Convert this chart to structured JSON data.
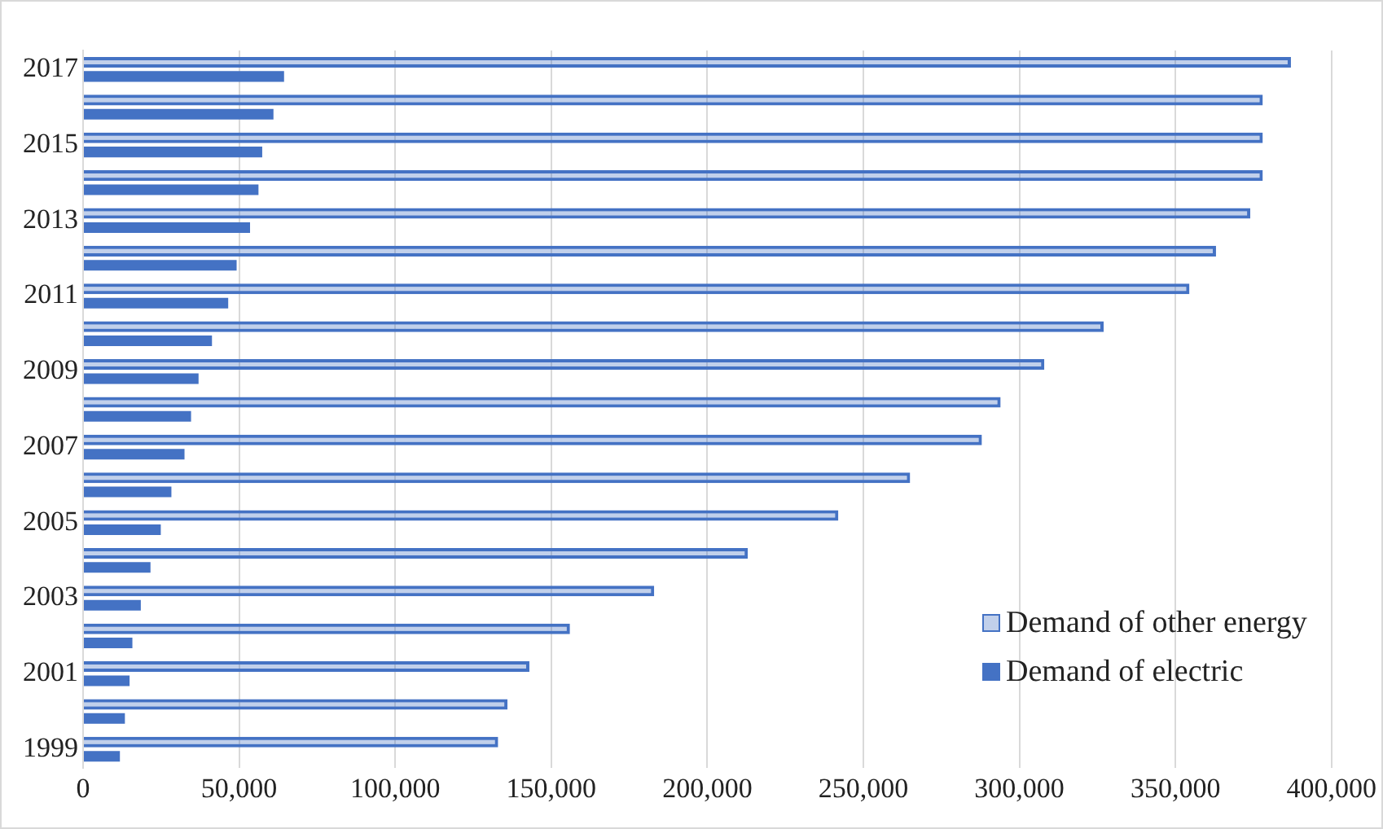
{
  "chart_data": {
    "type": "bar",
    "orientation": "horizontal",
    "categories": [
      "2017",
      null,
      "2015",
      null,
      "2013",
      null,
      "2011",
      null,
      "2009",
      null,
      "2007",
      null,
      "2005",
      null,
      "2003",
      null,
      "2001",
      null,
      "1999"
    ],
    "series": [
      {
        "name": "Demand of other energy",
        "color": "#4472c4",
        "values": [
          387000,
          378000,
          378000,
          378000,
          374000,
          363000,
          354500,
          327000,
          308000,
          294000,
          288000,
          265000,
          242000,
          213000,
          183000,
          156000,
          143000,
          136000,
          133000
        ]
      },
      {
        "name": "Demand of electric",
        "color": "#4472c4",
        "values": [
          64400,
          61000,
          57400,
          56200,
          53500,
          49200,
          46500,
          41300,
          37000,
          34600,
          32500,
          28300,
          24900,
          21600,
          18500,
          15800,
          14900,
          13400,
          11800
        ]
      }
    ],
    "xlim": [
      0,
      400000
    ],
    "xticks": [
      0,
      {
        "value": 50000,
        "label": "50,000"
      },
      {
        "value": 100000,
        "label": "100,000"
      },
      {
        "value": 150000,
        "label": "150,000"
      },
      {
        "value": 200000,
        "label": "200,000"
      },
      {
        "value": 250000,
        "label": "250,000"
      },
      {
        "value": 300000,
        "label": "300,000"
      },
      {
        "value": 350000,
        "label": "350,000"
      },
      {
        "value": 400000,
        "label": "400,000"
      }
    ],
    "grid": "x",
    "legend": "bottom right"
  }
}
